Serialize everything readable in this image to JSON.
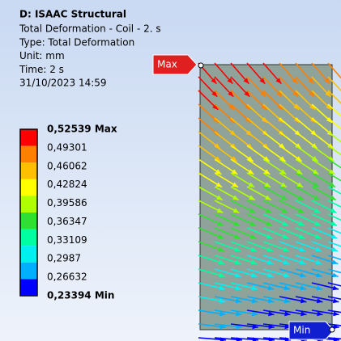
{
  "header": {
    "title": "D: ISAAC Structural",
    "lines": [
      "Total Deformation - Coil - 2. s",
      "Type: Total Deformation",
      "Unit: mm",
      "Time: 2 s",
      "31/10/2023 14:59"
    ]
  },
  "legend": {
    "labels": [
      "0,52539 Max",
      "0,49301",
      "0,46062",
      "0,42824",
      "0,39586",
      "0,36347",
      "0,33109",
      "0,2987",
      "0,26632",
      "0,23394 Min"
    ],
    "colors": [
      "#ff0000",
      "#ff8000",
      "#ffc000",
      "#ffff00",
      "#b0ff00",
      "#30e030",
      "#00ffa0",
      "#00f0f0",
      "#00b0ff",
      "#0000ff"
    ]
  },
  "markers": {
    "max": "Max",
    "min": "Min"
  }
}
